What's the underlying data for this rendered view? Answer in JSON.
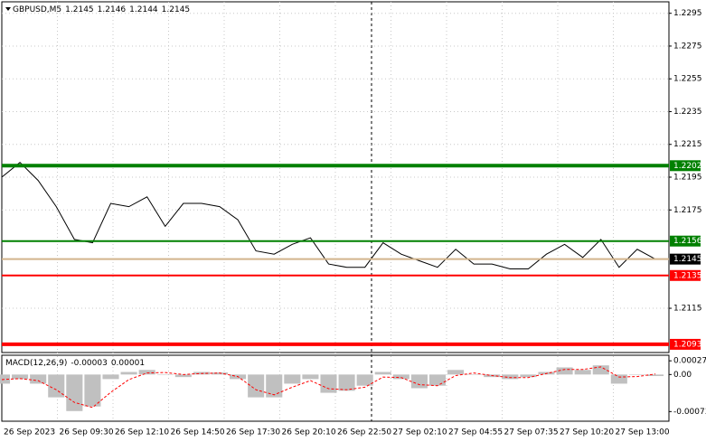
{
  "chart_data": [
    {
      "type": "line",
      "title": "GBPUSD,M5",
      "ohlc": [
        1.2145,
        1.2146,
        1.2144,
        1.2145
      ],
      "series": [
        {
          "color": "#000000",
          "values": [
            1.2195,
            1.2204,
            1.2193,
            1.2177,
            1.2157,
            1.2155,
            1.2179,
            1.2177,
            1.2183,
            1.2165,
            1.2179,
            1.2179,
            1.2177,
            1.2169,
            1.215,
            1.2148,
            1.2154,
            1.2158,
            1.2142,
            1.214,
            1.214,
            1.2155,
            1.2148,
            1.2144,
            1.214,
            1.2151,
            1.2142,
            1.2142,
            1.2139,
            1.2139,
            1.2148,
            1.2154,
            1.2146,
            1.2157,
            1.214,
            1.2151,
            1.2145
          ]
        }
      ],
      "ylim": [
        1.2088,
        1.2302
      ],
      "yticks": [
        1.2295,
        1.2275,
        1.2255,
        1.2235,
        1.2215,
        1.2195,
        1.2175,
        1.2115
      ],
      "grid": true,
      "levels": [
        {
          "value": 1.2202,
          "color": "#008000",
          "bold": true
        },
        {
          "value": 1.2156,
          "color": "#008000",
          "bold": false
        },
        {
          "value": 1.2145,
          "color": "#000000",
          "line_color": "#d2b48c",
          "bold": false
        },
        {
          "value": 1.2135,
          "color": "#ff0000",
          "bold": false
        },
        {
          "value": 1.2093,
          "color": "#ff0000",
          "bold": true
        }
      ],
      "time_labels": [
        "26 Sep 2023",
        "26 Sep 09:30",
        "26 Sep 12:10",
        "26 Sep 14:50",
        "26 Sep 17:30",
        "26 Sep 20:10",
        "26 Sep 22:50",
        "27 Sep 02:10",
        "27 Sep 04:55",
        "27 Sep 07:35",
        "27 Sep 10:20",
        "27 Sep 13:00"
      ]
    },
    {
      "type": "macd",
      "title": "MACD(12,26,9)",
      "readout": [
        -3e-05,
        1e-05
      ],
      "series": [
        {
          "color": "#c0c0c0",
          "values": [
            -0.00018,
            -9e-05,
            -0.00018,
            -0.00045,
            -0.00072,
            -0.00063,
            -9e-05,
            5e-05,
            9e-05,
            0,
            -5e-05,
            5e-05,
            4e-05,
            -9e-05,
            -0.00045,
            -0.00045,
            -0.00018,
            -9e-05,
            -0.00036,
            -0.00032,
            -0.00022,
            5e-05,
            -9e-05,
            -0.00027,
            -0.00022,
            9e-05,
            0,
            -5e-05,
            -9e-05,
            -5e-05,
            5e-05,
            0.00014,
            9e-05,
            0.00018,
            -0.00018,
            0,
            -3e-05
          ]
        },
        {
          "color": "#ff0000",
          "values": [
            -0.0001,
            -8e-05,
            -0.00012,
            -0.0003,
            -0.00055,
            -0.00065,
            -0.00035,
            -0.0001,
            3e-05,
            4e-05,
            0,
            2e-05,
            3e-05,
            -4e-05,
            -0.0003,
            -0.0004,
            -0.00025,
            -0.00012,
            -0.00028,
            -0.0003,
            -0.00025,
            -5e-05,
            -6e-05,
            -0.0002,
            -0.00022,
            -2e-05,
            3e-05,
            -2e-05,
            -6e-05,
            -6e-05,
            2e-05,
            0.0001,
            0.0001,
            0.00015,
            -5e-05,
            -4e-05,
            1e-05
          ]
        }
      ],
      "ylim": [
        -0.00092,
        0.00038
      ],
      "yticks": [
        0.00027,
        {
          "value": 0,
          "label": "0.00"
        },
        -0.00073
      ]
    }
  ]
}
